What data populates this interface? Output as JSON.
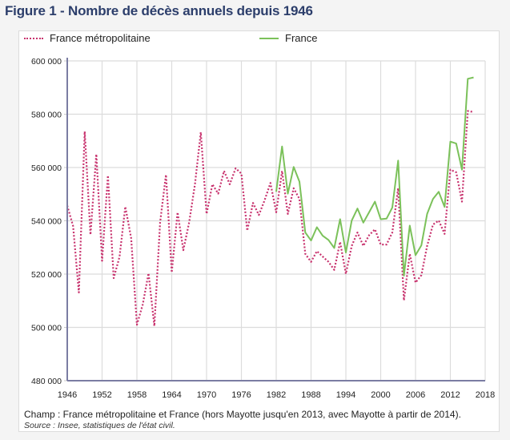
{
  "title": "Figure 1 - Nombre de décès annuels depuis 1946",
  "legend": [
    {
      "label": "France métropolitaine",
      "style": "dotted",
      "color": "#c8336e"
    },
    {
      "label": "France",
      "style": "solid",
      "color": "#7bc15a"
    }
  ],
  "footer": {
    "note": "Champ : France métropolitaine et France (hors Mayotte jusqu'en 2013, avec Mayotte à partir de 2014).",
    "source": "Source : Insee, statistiques de l'état civil."
  },
  "chart_data": {
    "type": "line",
    "title": "Nombre de décès annuels depuis 1946",
    "xlabel": "",
    "ylabel": "",
    "xlim": [
      1946,
      2018
    ],
    "ylim": [
      480000,
      600000
    ],
    "grid": true,
    "legend_position": "top",
    "x_ticks": [
      1946,
      1952,
      1958,
      1964,
      1970,
      1976,
      1982,
      1988,
      1994,
      2000,
      2006,
      2012,
      2018
    ],
    "y_ticks": [
      480000,
      500000,
      520000,
      540000,
      560000,
      580000,
      600000
    ],
    "y_tick_labels": [
      "480 000",
      "500 000",
      "520 000",
      "540 000",
      "560 000",
      "580 000",
      "600 000"
    ],
    "series": [
      {
        "name": "France métropolitaine",
        "style": "dotted",
        "color": "#c8336e",
        "x": [
          1946,
          1947,
          1948,
          1949,
          1950,
          1951,
          1952,
          1953,
          1954,
          1955,
          1956,
          1957,
          1958,
          1959,
          1960,
          1961,
          1962,
          1963,
          1964,
          1965,
          1966,
          1967,
          1968,
          1969,
          1970,
          1971,
          1972,
          1973,
          1974,
          1975,
          1976,
          1977,
          1978,
          1979,
          1980,
          1981,
          1982,
          1983,
          1984,
          1985,
          1986,
          1987,
          1988,
          1989,
          1990,
          1991,
          1992,
          1993,
          1994,
          1995,
          1996,
          1997,
          1998,
          1999,
          2000,
          2001,
          2002,
          2003,
          2004,
          2005,
          2006,
          2007,
          2008,
          2009,
          2010,
          2011,
          2012,
          2013,
          2014,
          2015,
          2016
        ],
        "values": [
          545700,
          538000,
          513100,
          573500,
          534800,
          565000,
          525000,
          557000,
          518500,
          526500,
          545300,
          533500,
          501000,
          508600,
          520300,
          500500,
          539500,
          557300,
          520600,
          543200,
          529000,
          539500,
          553700,
          573200,
          542600,
          553700,
          550200,
          558700,
          553700,
          559700,
          557700,
          536300,
          546700,
          542200,
          547700,
          554200,
          543200,
          558700,
          542600,
          552200,
          548200,
          527600,
          524600,
          528600,
          526600,
          524600,
          521600,
          532100,
          520100,
          530600,
          535600,
          530600,
          534600,
          536800,
          531100,
          531100,
          535600,
          552200,
          510100,
          527600,
          516800,
          519600,
          530600,
          538600,
          540100,
          535100,
          559200,
          558200,
          547200,
          581200,
          580800
        ]
      },
      {
        "name": "France",
        "style": "solid",
        "color": "#7bc15a",
        "x": [
          1982,
          1983,
          1984,
          1985,
          1986,
          1987,
          1988,
          1989,
          1990,
          1991,
          1992,
          1993,
          1994,
          1995,
          1996,
          1997,
          1998,
          1999,
          2000,
          2001,
          2002,
          2003,
          2004,
          2005,
          2006,
          2007,
          2008,
          2009,
          2010,
          2011,
          2012,
          2013,
          2014,
          2015,
          2016
        ],
        "values": [
          550900,
          567900,
          550200,
          560200,
          554700,
          535600,
          532600,
          537600,
          534400,
          532800,
          529800,
          540600,
          528100,
          540100,
          544600,
          539300,
          543200,
          547200,
          540600,
          540800,
          545000,
          562600,
          519400,
          538200,
          527100,
          530800,
          542600,
          548200,
          550900,
          545200,
          569700,
          569000,
          559200,
          593300,
          593800
        ]
      }
    ]
  }
}
